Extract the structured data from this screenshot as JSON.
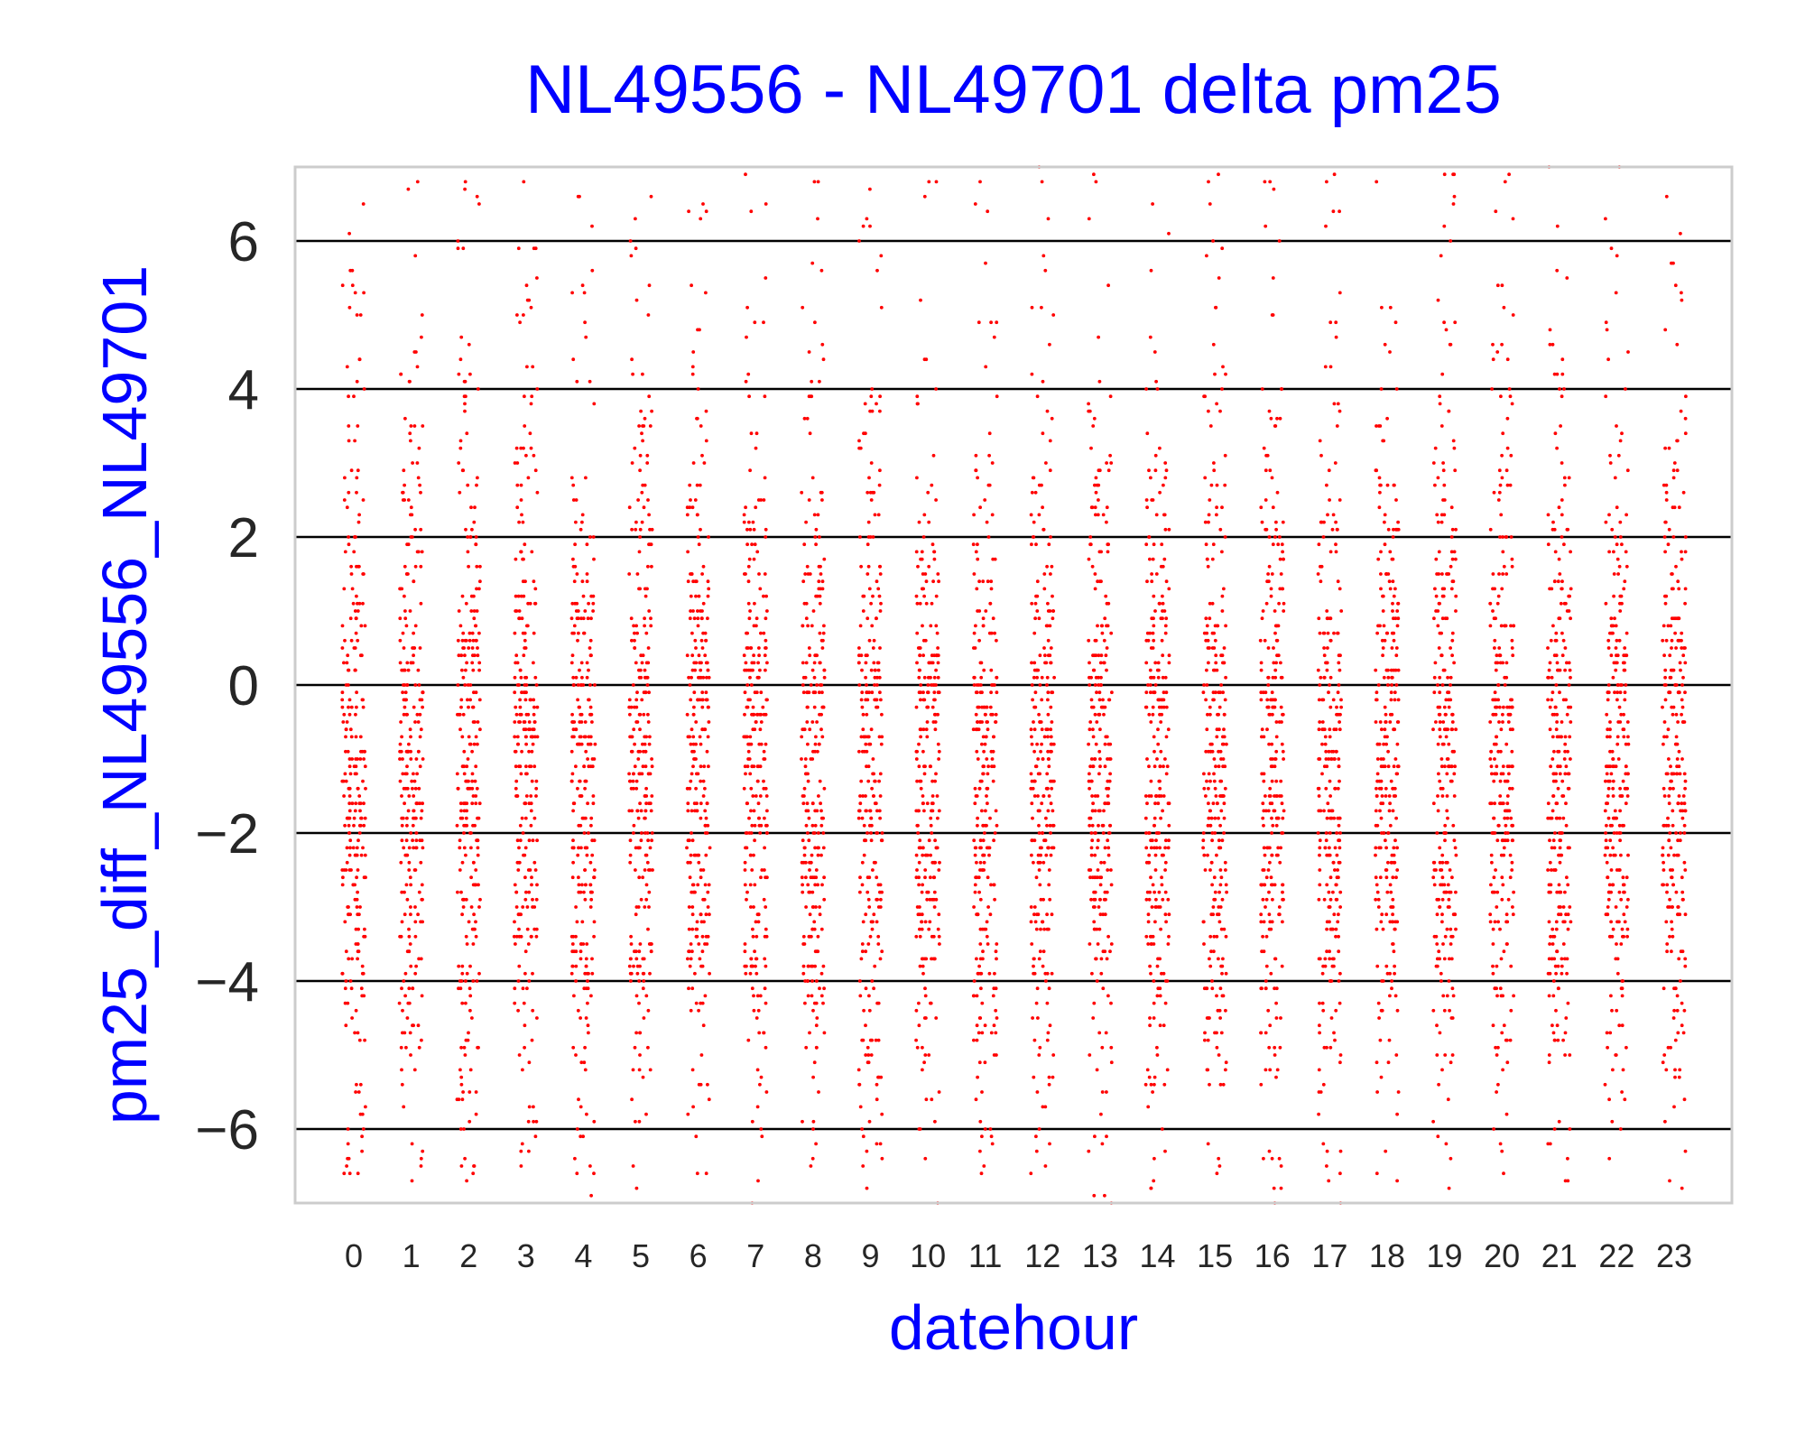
{
  "chart_data": {
    "type": "scatter",
    "title": "NL49556 - NL49701 delta pm25",
    "xlabel": "datehour",
    "ylabel": "pm25_diff_NL49556_NL49701",
    "categories": [
      "0",
      "1",
      "2",
      "3",
      "4",
      "5",
      "6",
      "7",
      "8",
      "9",
      "10",
      "11",
      "12",
      "13",
      "14",
      "15",
      "16",
      "17",
      "18",
      "19",
      "20",
      "21",
      "22",
      "23"
    ],
    "yticks": [
      "6",
      "4",
      "2",
      "0",
      "−2",
      "−4",
      "−6"
    ],
    "ytick_values": [
      6,
      4,
      2,
      0,
      -2,
      -4,
      -6
    ],
    "ylim": [
      -7,
      7
    ],
    "grid": "horizontal",
    "marker_color": "#ff0000",
    "gridline_color": "#000000",
    "spine_color": "#cccccc",
    "points_per_category": 260,
    "distribution": "strip plot of hourly differences, dense between -6 and 4, sparse beyond, values clipped at ±7",
    "seed": 49556
  }
}
